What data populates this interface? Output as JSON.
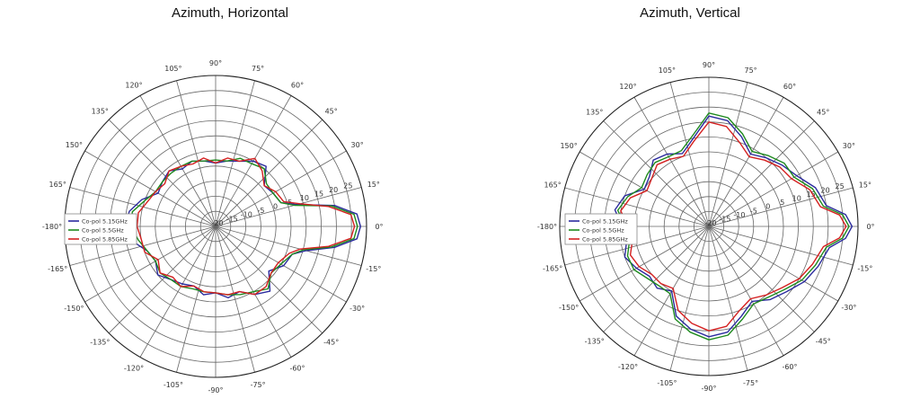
{
  "charts": [
    {
      "title": "Azimuth, Horizontal"
    },
    {
      "title": "Azimuth, Vertical"
    }
  ],
  "series_colors": [
    "#2b2b9e",
    "#1f8a1f",
    "#d42020"
  ],
  "chart_data": [
    {
      "type": "polar-line",
      "title": "Azimuth, Horizontal",
      "angle_ticks": [
        "0°",
        "15°",
        "30°",
        "45°",
        "60°",
        "75°",
        "90°",
        "105°",
        "120°",
        "135°",
        "150°",
        "165°",
        "-180°",
        "-165°",
        "-150°",
        "-135°",
        "-120°",
        "-105°",
        "-90°",
        "-75°",
        "-60°",
        "-45°",
        "-30°",
        "-15°"
      ],
      "radial_tick_labels": [
        "25",
        "20",
        "15",
        "10",
        "5",
        "0",
        "-5",
        "-10",
        "-15",
        "-20"
      ],
      "grid": true,
      "legend_position": "left",
      "series": [
        {
          "name": "Co-pol 5.15GHz",
          "angles": [
            0,
            5,
            10,
            15,
            20,
            30,
            40,
            50,
            60,
            70,
            80,
            90,
            100,
            110,
            120,
            130,
            140,
            150,
            160,
            170,
            180,
            190,
            200,
            210,
            220,
            230,
            240,
            250,
            260,
            270,
            280,
            290,
            300,
            310,
            320,
            330,
            340,
            345,
            350,
            355
          ],
          "values": [
            28,
            27,
            20,
            8,
            3,
            2,
            1,
            6,
            5,
            3,
            2,
            1,
            2,
            3,
            2,
            4,
            3,
            2,
            6,
            9,
            10,
            8,
            4,
            3,
            5,
            3,
            2,
            1,
            3,
            2,
            4,
            3,
            6,
            8,
            3,
            6,
            7,
            11,
            20,
            27
          ]
        },
        {
          "name": "Co-pol 5.5GHz",
          "angles": [
            0,
            5,
            10,
            15,
            20,
            30,
            40,
            50,
            60,
            70,
            80,
            90,
            100,
            110,
            120,
            130,
            140,
            150,
            160,
            170,
            180,
            190,
            200,
            210,
            220,
            230,
            240,
            250,
            260,
            270,
            280,
            290,
            300,
            310,
            320,
            330,
            340,
            345,
            350,
            355
          ],
          "values": [
            27,
            26,
            19,
            7,
            3,
            2,
            2,
            5,
            4,
            4,
            2,
            2,
            2,
            3,
            3,
            3,
            3,
            3,
            5,
            8,
            8,
            6,
            4,
            3,
            4,
            3,
            3,
            2,
            2,
            2,
            3,
            4,
            5,
            7,
            4,
            5,
            7,
            10,
            19,
            26
          ]
        },
        {
          "name": "Co-pol 5.85GHz",
          "angles": [
            0,
            5,
            10,
            15,
            20,
            30,
            40,
            50,
            60,
            70,
            80,
            90,
            100,
            110,
            120,
            130,
            140,
            150,
            160,
            170,
            180,
            190,
            200,
            210,
            220,
            230,
            240,
            250,
            260,
            270,
            280,
            290,
            300,
            310,
            320,
            330,
            340,
            345,
            350,
            355
          ],
          "values": [
            26,
            25,
            18,
            9,
            4,
            3,
            1,
            4,
            6,
            3,
            3,
            1,
            3,
            2,
            3,
            4,
            2,
            3,
            4,
            6,
            6,
            5,
            5,
            2,
            4,
            2,
            3,
            1,
            2,
            2,
            3,
            3,
            6,
            6,
            4,
            4,
            6,
            9,
            18,
            25
          ]
        }
      ]
    },
    {
      "type": "polar-line",
      "title": "Azimuth, Vertical",
      "angle_ticks": [
        "0°",
        "15°",
        "30°",
        "45°",
        "60°",
        "75°",
        "90°",
        "105°",
        "120°",
        "135°",
        "150°",
        "165°",
        "-180°",
        "-165°",
        "-150°",
        "-135°",
        "-120°",
        "-105°",
        "-90°",
        "-75°",
        "-60°",
        "-45°",
        "-30°",
        "-15°"
      ],
      "radial_tick_labels": [
        "25",
        "20",
        "15",
        "10",
        "5",
        "0",
        "-5",
        "-10",
        "-15",
        "-20"
      ],
      "grid": true,
      "legend_position": "left",
      "series": [
        {
          "name": "Co-pol 5.15GHz",
          "angles": [
            0,
            5,
            10,
            20,
            30,
            40,
            50,
            60,
            70,
            80,
            90,
            100,
            110,
            120,
            130,
            140,
            150,
            160,
            170,
            180,
            190,
            200,
            210,
            220,
            230,
            240,
            250,
            260,
            270,
            280,
            290,
            300,
            310,
            320,
            330,
            340,
            350,
            355
          ],
          "values": [
            28,
            26,
            20,
            18,
            14,
            12,
            10,
            8,
            12,
            16,
            17,
            10,
            6,
            8,
            9,
            6,
            5,
            10,
            12,
            9,
            8,
            10,
            8,
            6,
            7,
            5,
            12,
            15,
            17,
            16,
            12,
            9,
            12,
            14,
            17,
            19,
            21,
            26
          ]
        },
        {
          "name": "Co-pol 5.5GHz",
          "angles": [
            0,
            5,
            10,
            20,
            30,
            40,
            50,
            60,
            70,
            80,
            90,
            100,
            110,
            120,
            130,
            140,
            150,
            160,
            170,
            180,
            190,
            200,
            210,
            220,
            230,
            240,
            250,
            260,
            270,
            280,
            290,
            300,
            310,
            320,
            330,
            340,
            350,
            355
          ],
          "values": [
            27,
            25,
            19,
            17,
            13,
            13,
            11,
            9,
            13,
            17,
            18,
            11,
            7,
            7,
            8,
            7,
            6,
            9,
            11,
            8,
            7,
            9,
            9,
            7,
            6,
            6,
            13,
            16,
            18,
            17,
            13,
            10,
            11,
            13,
            16,
            18,
            20,
            25
          ]
        },
        {
          "name": "Co-pol 5.85GHz",
          "angles": [
            0,
            5,
            10,
            20,
            30,
            40,
            50,
            60,
            70,
            80,
            90,
            100,
            110,
            120,
            130,
            140,
            150,
            160,
            170,
            180,
            190,
            200,
            210,
            220,
            230,
            240,
            250,
            260,
            270,
            280,
            290,
            300,
            310,
            320,
            330,
            340,
            350,
            355
          ],
          "values": [
            26,
            24,
            18,
            16,
            12,
            11,
            9,
            7,
            10,
            14,
            15,
            9,
            5,
            6,
            7,
            5,
            4,
            8,
            10,
            7,
            6,
            8,
            7,
            5,
            5,
            4,
            10,
            13,
            15,
            14,
            10,
            8,
            10,
            12,
            15,
            17,
            19,
            24
          ]
        }
      ]
    }
  ]
}
